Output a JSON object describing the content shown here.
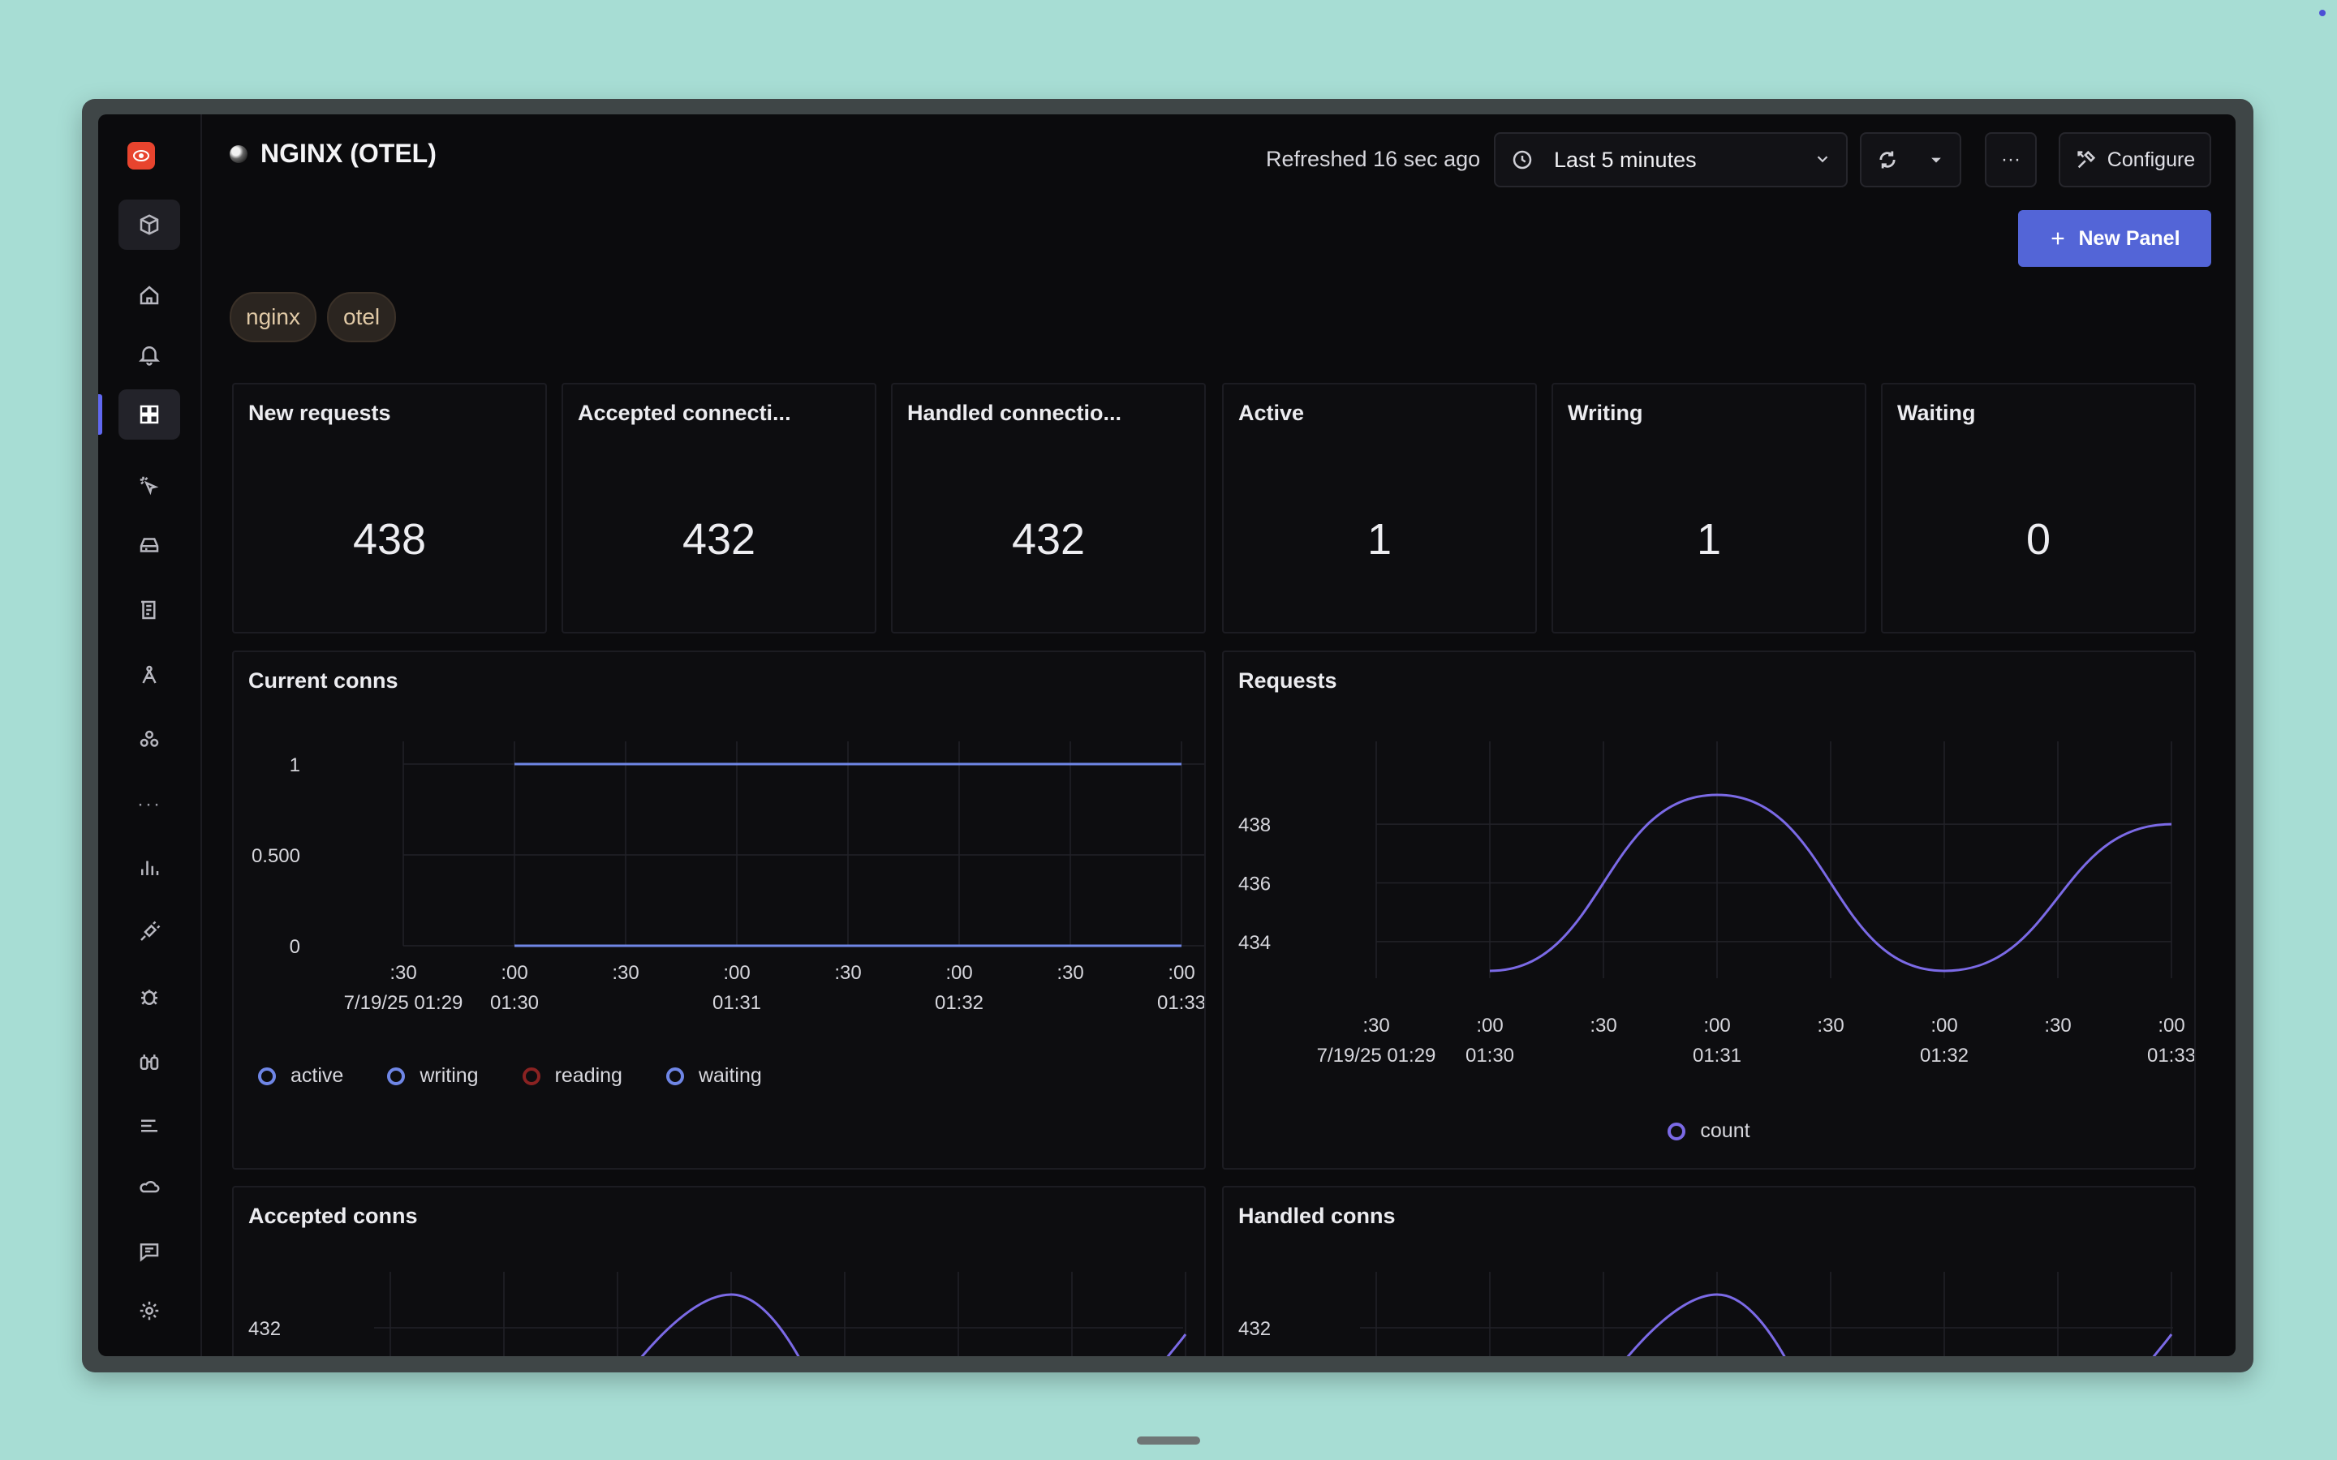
{
  "dashboard": {
    "title": "NGINX (OTEL)",
    "refreshed": "Refreshed 16 sec ago",
    "time_range": "Last 5 minutes",
    "more_label": "···",
    "configure_label": "Configure",
    "new_panel_label": "New Panel",
    "tags": [
      "nginx",
      "otel"
    ]
  },
  "sidebar": {
    "items": [
      "box-icon",
      "home-icon",
      "alerts-icon",
      "dashboards-icon",
      "ai-icon",
      "infra-icon",
      "logs-icon",
      "apm-icon",
      "services-icon",
      "more-icon",
      "metrics-icon",
      "integrations-icon",
      "bugs-icon",
      "explorer-icon",
      "pipelines-icon",
      "cloud-icon",
      "messages-icon",
      "settings-icon"
    ],
    "active": "dashboards-icon",
    "more": "···"
  },
  "stats": [
    {
      "title": "New requests",
      "value": "438"
    },
    {
      "title": "Accepted connecti...",
      "value": "432"
    },
    {
      "title": "Handled connectio...",
      "value": "432"
    },
    {
      "title": "Active",
      "value": "1"
    },
    {
      "title": "Writing",
      "value": "1"
    },
    {
      "title": "Waiting",
      "value": "0"
    }
  ],
  "panels": {
    "current_conns": "Current conns",
    "requests": "Requests",
    "accepted_conns": "Accepted conns",
    "handled_conns": "Handled conns"
  },
  "colors": {
    "accent": "#5365d7",
    "line_blue": "#7b8ff0",
    "line_purple": "#7b6ae6",
    "reading": "#b03333"
  },
  "chart_data": [
    {
      "type": "line",
      "title": "Current conns",
      "x_ticks": [
        {
          "top": ":30",
          "bottom": "7/19/25 01:29"
        },
        {
          "top": ":00",
          "bottom": "01:30"
        },
        {
          "top": ":30",
          "bottom": ""
        },
        {
          "top": ":00",
          "bottom": "01:31"
        },
        {
          "top": ":30",
          "bottom": ""
        },
        {
          "top": ":00",
          "bottom": "01:32"
        },
        {
          "top": ":30",
          "bottom": ""
        },
        {
          "top": ":00",
          "bottom": "01:33"
        }
      ],
      "y_ticks": [
        "1",
        "0.500",
        "0"
      ],
      "ylim": [
        0,
        1
      ],
      "x": [
        "01:30:00",
        "01:33:00"
      ],
      "series": [
        {
          "name": "active",
          "values": [
            1,
            1
          ],
          "color": "#6f86e6"
        },
        {
          "name": "writing",
          "values": [
            1,
            1
          ],
          "color": "#6f86e6"
        },
        {
          "name": "reading",
          "values": [
            0,
            0
          ],
          "color": "#b03333"
        },
        {
          "name": "waiting",
          "values": [
            0,
            0
          ],
          "color": "#6f86e6"
        }
      ],
      "grid": true,
      "legend": "bottom"
    },
    {
      "type": "line",
      "title": "Requests",
      "x_ticks": [
        {
          "top": ":30",
          "bottom": "7/19/25 01:29"
        },
        {
          "top": ":00",
          "bottom": "01:30"
        },
        {
          "top": ":30",
          "bottom": ""
        },
        {
          "top": ":00",
          "bottom": "01:31"
        },
        {
          "top": ":30",
          "bottom": ""
        },
        {
          "top": ":00",
          "bottom": "01:32"
        },
        {
          "top": ":30",
          "bottom": ""
        },
        {
          "top": ":00",
          "bottom": "01:33"
        }
      ],
      "y_ticks": [
        "438",
        "436",
        "434"
      ],
      "ylim": [
        433,
        439
      ],
      "x": [
        "01:30:00",
        "01:31:00",
        "01:32:00",
        "01:33:00"
      ],
      "series": [
        {
          "name": "count",
          "values": [
            433,
            439,
            433,
            438
          ],
          "color": "#7b6ae6"
        }
      ],
      "grid": true,
      "legend": "bottom"
    },
    {
      "type": "line",
      "title": "Accepted conns",
      "y_ticks": [
        "432"
      ],
      "x": [
        "01:31:00",
        "01:33:00"
      ],
      "series": [
        {
          "name": "",
          "values": [
            432.5,
            432
          ]
        }
      ],
      "grid": true
    },
    {
      "type": "line",
      "title": "Handled conns",
      "y_ticks": [
        "432"
      ],
      "x": [
        "01:31:00",
        "01:33:00"
      ],
      "series": [
        {
          "name": "",
          "values": [
            432.5,
            432
          ]
        }
      ],
      "grid": true
    }
  ]
}
